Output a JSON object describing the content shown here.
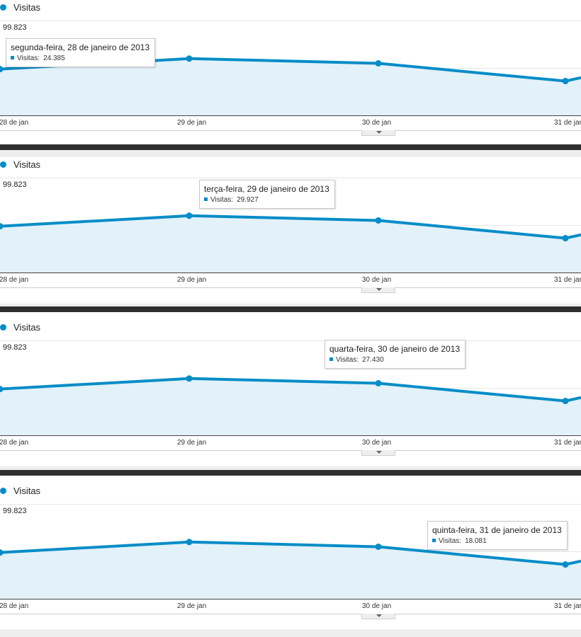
{
  "colors": {
    "series": "#058dc7",
    "area": "#e3f1f9",
    "grid": "#e6e6e6",
    "axis": "#444444"
  },
  "chart_data": {
    "type": "area",
    "x": [
      "28 de jan",
      "29 de jan",
      "30 de jan",
      "31 de jan",
      ""
    ],
    "series": [
      {
        "name": "Visitas",
        "values": [
          24385,
          29927,
          27430,
          18081,
          19900
        ]
      }
    ],
    "ylim": [
      0,
      50000
    ],
    "ymax_label": "99.823",
    "grid": true,
    "legend": "top-left"
  },
  "panels": [
    {
      "legend": "Visitas",
      "ymax_label": "99.823",
      "ticks": [
        "28 de jan",
        "29 de jan",
        "30 de jan",
        "31 de jan"
      ],
      "tooltip": {
        "title": "segunda-feira, 28 de janeiro de 2013",
        "label": "Visitas:",
        "value": "24.385"
      }
    },
    {
      "legend": "Visitas",
      "ymax_label": "99.823",
      "ticks": [
        "28 de jan",
        "29 de jan",
        "30 de jan",
        "31 de jan"
      ],
      "tooltip": {
        "title": "terça-feira, 29 de janeiro de 2013",
        "label": "Visitas:",
        "value": "29.927"
      }
    },
    {
      "legend": "Visitas",
      "ymax_label": "99.823",
      "ticks": [
        "28 de jan",
        "29 de jan",
        "30 de jan",
        "31 de jan"
      ],
      "tooltip": {
        "title": "quarta-feira, 30 de janeiro de 2013",
        "label": "Visitas:",
        "value": "27.430"
      }
    },
    {
      "legend": "Visitas",
      "ymax_label": "99.823",
      "ticks": [
        "28 de jan",
        "29 de jan",
        "30 de jan",
        "31 de jan"
      ],
      "tooltip": {
        "title": "quinta-feira, 31 de janeiro de 2013",
        "label": "Visitas:",
        "value": "18.081"
      }
    }
  ]
}
